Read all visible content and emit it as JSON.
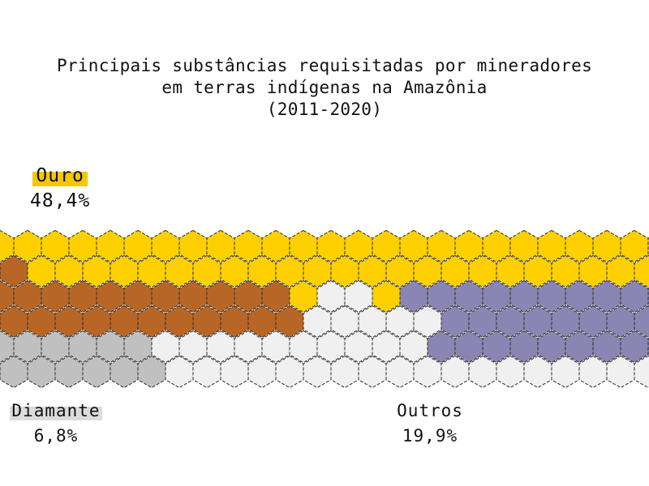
{
  "chart_data": {
    "type": "waffle-hexagon",
    "title_lines": [
      "Principais substâncias requisitadas por mineradores",
      "em terras indígenas na Amazônia",
      "(2011-2020)"
    ],
    "categories": [
      {
        "name": "Ouro",
        "value": 48.4,
        "value_label": "48,4%",
        "color": "#ffd000"
      },
      {
        "name": "Diamante",
        "value": 6.8,
        "value_label": "6,8%",
        "color": "#c0c0c0"
      },
      {
        "name": "Outros",
        "value": 19.9,
        "value_label": "19,9%",
        "color": "#f0f0f0"
      },
      {
        "name": "",
        "value": null,
        "value_label": "",
        "color": "#b86626"
      },
      {
        "name": "",
        "value": null,
        "value_label": "",
        "color": "#8a85b2"
      }
    ]
  }
}
